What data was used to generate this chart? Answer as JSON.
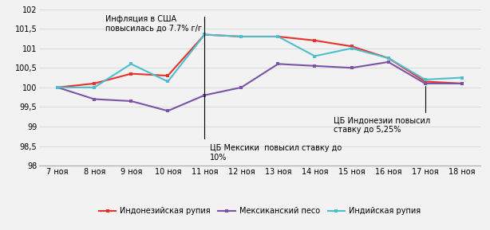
{
  "x_labels": [
    "7 ноя",
    "8 ноя",
    "9 ноя",
    "10 ноя",
    "11 ноя",
    "12 ноя",
    "13 ноя",
    "14 ноя",
    "15 ноя",
    "16 ноя",
    "17 ноя",
    "18 ноя"
  ],
  "indonesian_rupiah": [
    100.0,
    100.1,
    100.35,
    100.3,
    101.35,
    101.3,
    101.3,
    101.2,
    101.05,
    100.75,
    100.15,
    100.1
  ],
  "mexican_peso": [
    100.0,
    99.7,
    99.65,
    99.4,
    99.8,
    100.0,
    100.6,
    100.55,
    100.5,
    100.65,
    100.1,
    100.1
  ],
  "indian_rupee": [
    100.0,
    100.0,
    100.6,
    100.15,
    101.35,
    101.3,
    101.3,
    100.8,
    101.0,
    100.75,
    100.2,
    100.25
  ],
  "colors": {
    "indonesian_rupiah": "#e8312a",
    "mexican_peso": "#7B52A6",
    "indian_rupee": "#4DBECC"
  },
  "ylim": [
    98,
    102
  ],
  "yticks": [
    98,
    98.5,
    99,
    99.5,
    100,
    100.5,
    101,
    101.5,
    102
  ],
  "ytick_labels": [
    "98",
    "98,5",
    "99",
    "99,5",
    "100",
    "100,5",
    "101",
    "101,5",
    "102"
  ],
  "annotation1_text": "Инфляция в США\nповысилась до 7.7% г/г",
  "annotation2_text": "ЦБ Мексики  повысил ставку до\n10%",
  "annotation3_text": "ЦБ Индонезии повысил\nставку до 5,25%",
  "legend_labels": [
    "Индонезийская рупия",
    "Мексиканский песо",
    "Индийская рупия"
  ],
  "background_color": "#f2f2f2"
}
